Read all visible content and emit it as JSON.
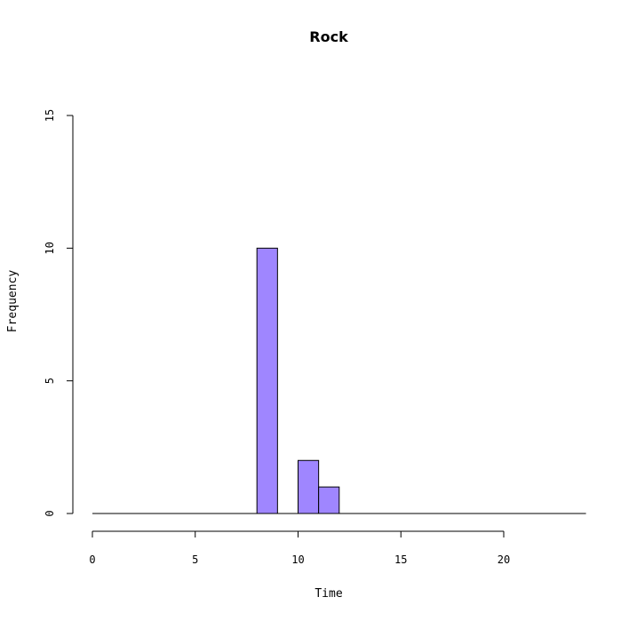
{
  "chart_data": {
    "type": "bar",
    "title": "Rock",
    "xlabel": "Time",
    "ylabel": "Frequency",
    "bar_color": "#9f86ff",
    "xlim": [
      0,
      24
    ],
    "ylim": [
      0,
      15
    ],
    "x_ticks": [
      0,
      5,
      10,
      15,
      20
    ],
    "y_ticks": [
      0,
      5,
      10,
      15
    ],
    "bins": [
      {
        "start": 0,
        "end": 1,
        "value": 0
      },
      {
        "start": 1,
        "end": 2,
        "value": 0
      },
      {
        "start": 2,
        "end": 3,
        "value": 0
      },
      {
        "start": 3,
        "end": 4,
        "value": 0
      },
      {
        "start": 4,
        "end": 5,
        "value": 0
      },
      {
        "start": 5,
        "end": 6,
        "value": 0
      },
      {
        "start": 6,
        "end": 7,
        "value": 0
      },
      {
        "start": 7,
        "end": 8,
        "value": 0
      },
      {
        "start": 8,
        "end": 9,
        "value": 10
      },
      {
        "start": 9,
        "end": 10,
        "value": 0
      },
      {
        "start": 10,
        "end": 11,
        "value": 2
      },
      {
        "start": 11,
        "end": 12,
        "value": 1
      },
      {
        "start": 12,
        "end": 13,
        "value": 0
      },
      {
        "start": 13,
        "end": 14,
        "value": 0
      },
      {
        "start": 14,
        "end": 15,
        "value": 0
      },
      {
        "start": 15,
        "end": 16,
        "value": 0
      },
      {
        "start": 16,
        "end": 17,
        "value": 0
      },
      {
        "start": 17,
        "end": 18,
        "value": 0
      },
      {
        "start": 18,
        "end": 19,
        "value": 0
      },
      {
        "start": 19,
        "end": 20,
        "value": 0
      },
      {
        "start": 20,
        "end": 21,
        "value": 0
      },
      {
        "start": 21,
        "end": 22,
        "value": 0
      },
      {
        "start": 22,
        "end": 23,
        "value": 0
      },
      {
        "start": 23,
        "end": 24,
        "value": 0
      }
    ]
  }
}
